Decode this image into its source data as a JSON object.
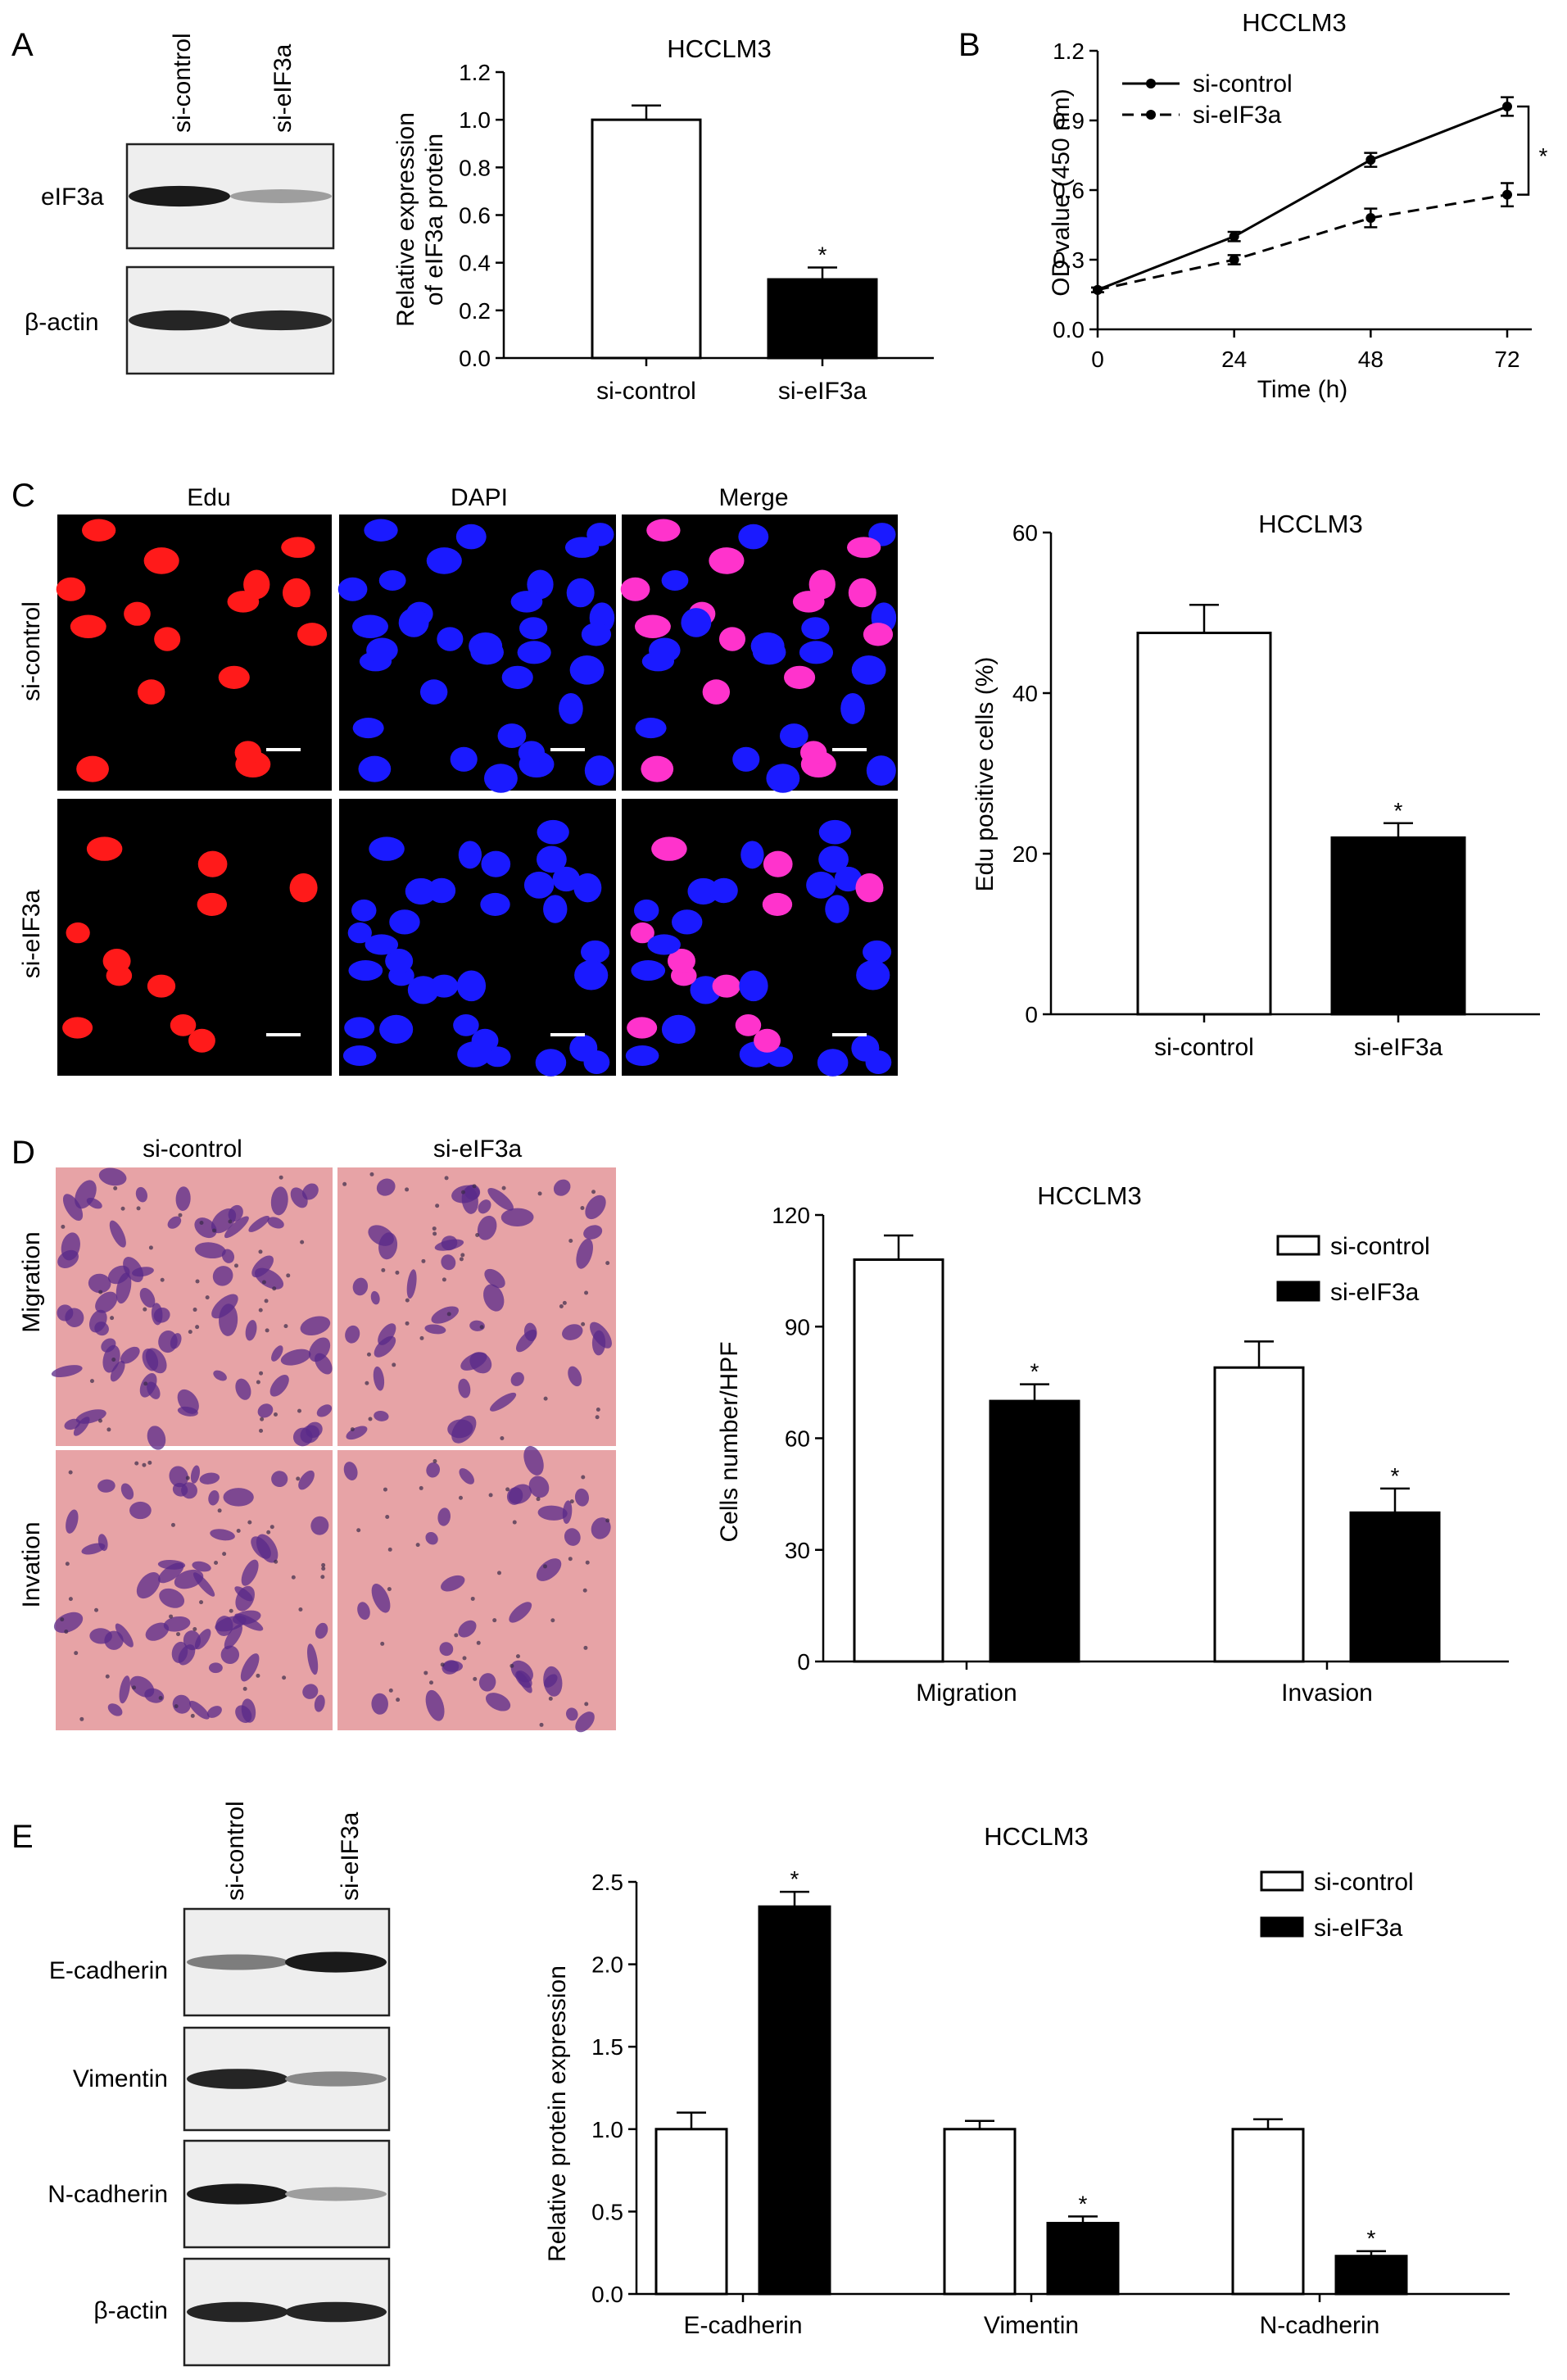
{
  "panels": {
    "A": {
      "letter": "A",
      "blot": {
        "lanes": [
          "si-control",
          "si-eIF3a"
        ],
        "rows": [
          {
            "label": "eIF3a",
            "intensity": [
              0.95,
              0.35
            ]
          },
          {
            "label": "β-actin",
            "intensity": [
              0.9,
              0.88
            ]
          }
        ]
      }
    },
    "B": {
      "letter": "B"
    },
    "C": {
      "letter": "C",
      "columns": [
        "Edu",
        "DAPI",
        "Merge"
      ],
      "rows": [
        "si-control",
        "si-eIF3a"
      ],
      "colors": {
        "edu": "#ff1a1a",
        "dapi": "#1a1aff",
        "merge": "#ff33cc"
      }
    },
    "D": {
      "letter": "D",
      "columns": [
        "si-control",
        "si-eIF3a"
      ],
      "rows": [
        "Migration",
        "Invation"
      ],
      "colors": {
        "background": "#e7a3a6",
        "cells": "#5a2a8a"
      }
    },
    "E": {
      "letter": "E",
      "blot": {
        "lanes": [
          "si-control",
          "si-eIF3a"
        ],
        "rows": [
          {
            "label": "E-cadherin",
            "intensity": [
              0.5,
              0.95
            ]
          },
          {
            "label": "Vimentin",
            "intensity": [
              0.9,
              0.45
            ]
          },
          {
            "label": "N-cadherin",
            "intensity": [
              0.95,
              0.35
            ]
          },
          {
            "label": "β-actin",
            "intensity": [
              0.9,
              0.9
            ]
          }
        ]
      }
    }
  },
  "chart_data": [
    {
      "id": "A",
      "type": "bar",
      "title": "HCCLM3",
      "ylabel": [
        "Relative expression",
        "of eIF3a protein"
      ],
      "categories": [
        "si-control",
        "si-eIF3a"
      ],
      "values": [
        1.0,
        0.33
      ],
      "errors": [
        0.06,
        0.05
      ],
      "fills": [
        "#ffffff",
        "#000000"
      ],
      "significance": [
        "",
        "*"
      ],
      "ylim": [
        0,
        1.2
      ],
      "yticks": [
        "0.0",
        "0.2",
        "0.4",
        "0.6",
        "0.8",
        "1.0",
        "1.2"
      ]
    },
    {
      "id": "B",
      "type": "line",
      "title": "HCCLM3",
      "xlabel": "Time (h)",
      "ylabel": "OD value (450 nm)",
      "x": [
        0,
        24,
        48,
        72
      ],
      "xticks": [
        "0",
        "24",
        "48",
        "72"
      ],
      "ylim": [
        0,
        1.2
      ],
      "yticks": [
        "0.0",
        "0.3",
        "0.6",
        "0.9",
        "1.2"
      ],
      "series": [
        {
          "name": "si-control",
          "values": [
            0.17,
            0.4,
            0.73,
            0.96
          ],
          "errors": [
            0.01,
            0.02,
            0.03,
            0.04
          ],
          "dash": false
        },
        {
          "name": "si-eIF3a",
          "values": [
            0.17,
            0.3,
            0.48,
            0.58
          ],
          "errors": [
            0.01,
            0.02,
            0.04,
            0.05
          ],
          "dash": true
        }
      ],
      "significance": "*",
      "legend": "top-left"
    },
    {
      "id": "C",
      "type": "bar",
      "title": "HCCLM3",
      "ylabel": "Edu positive cells (%)",
      "categories": [
        "si-control",
        "si-eIF3a"
      ],
      "values": [
        47.5,
        22
      ],
      "errors": [
        3.5,
        1.8
      ],
      "fills": [
        "#ffffff",
        "#000000"
      ],
      "significance": [
        "",
        "*"
      ],
      "ylim": [
        0,
        60
      ],
      "yticks": [
        "0",
        "20",
        "40",
        "60"
      ]
    },
    {
      "id": "D",
      "type": "bar",
      "title": "HCCLM3",
      "ylabel": "Cells number/HPF",
      "categories": [
        "Migration",
        "Invasion"
      ],
      "series": [
        {
          "name": "si-control",
          "values": [
            108,
            79
          ],
          "errors": [
            6.5,
            7
          ],
          "fill": "#ffffff"
        },
        {
          "name": "si-eIF3a",
          "values": [
            70,
            40
          ],
          "errors": [
            4.5,
            6.5
          ],
          "fill": "#000000"
        }
      ],
      "significance": [
        [
          "",
          "*"
        ],
        [
          "",
          "*"
        ]
      ],
      "ylim": [
        0,
        120
      ],
      "yticks": [
        "0",
        "30",
        "60",
        "90",
        "120"
      ],
      "legend": "top-right"
    },
    {
      "id": "E",
      "type": "bar",
      "title": "HCCLM3",
      "ylabel": "Relative protein expression",
      "categories": [
        "E-cadherin",
        "Vimentin",
        "N-cadherin"
      ],
      "series": [
        {
          "name": "si-control",
          "values": [
            1.0,
            1.0,
            1.0
          ],
          "errors": [
            0.1,
            0.05,
            0.06
          ],
          "fill": "#ffffff"
        },
        {
          "name": "si-eIF3a",
          "values": [
            2.35,
            0.43,
            0.23
          ],
          "errors": [
            0.09,
            0.04,
            0.03
          ],
          "fill": "#000000"
        }
      ],
      "significance": [
        [
          "",
          "*"
        ],
        [
          "",
          "*"
        ],
        [
          "",
          "*"
        ]
      ],
      "ylim": [
        0,
        2.5
      ],
      "yticks": [
        "0.0",
        "0.5",
        "1.0",
        "1.5",
        "2.0",
        "2.5"
      ],
      "legend": "top-right"
    }
  ]
}
